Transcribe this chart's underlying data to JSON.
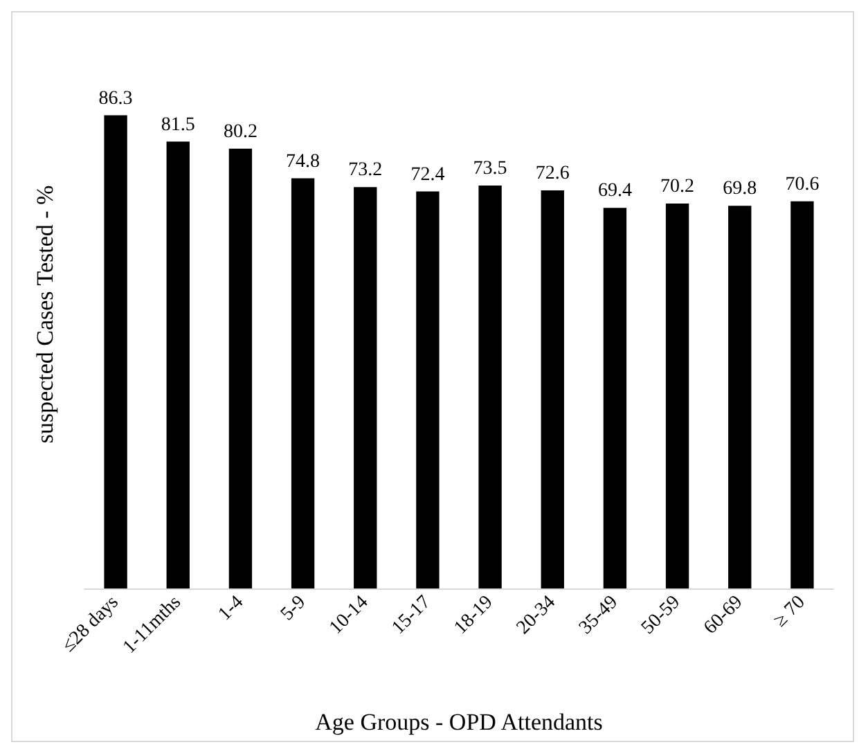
{
  "chart_data": {
    "type": "bar",
    "xlabel": "Age Groups - OPD Attendants",
    "ylabel": "suspected Cases Tested - %",
    "categories": [
      "≤28 days",
      "1-11mths",
      "1-4",
      "5-9",
      "10-14",
      "15-17",
      "18-19",
      "20-34",
      "35-49",
      "50-59",
      "60-69",
      "≥ 70"
    ],
    "values": [
      86.3,
      81.5,
      80.2,
      74.8,
      73.2,
      72.4,
      73.5,
      72.6,
      69.4,
      70.2,
      69.8,
      70.6
    ],
    "color": "#000000",
    "data_labels": true,
    "tick_labels": "x"
  }
}
